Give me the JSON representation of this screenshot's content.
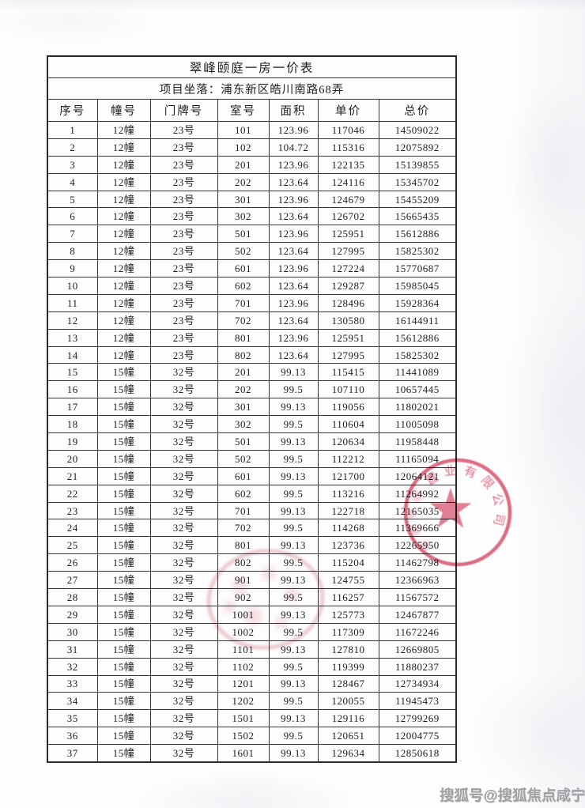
{
  "document": {
    "title": "翠峰颐庭一房一价表",
    "location": "项目坐落：浦东新区皓川南路68弄"
  },
  "table": {
    "columns": [
      "序号",
      "幢号",
      "门牌号",
      "室号",
      "面积",
      "单价",
      "总价"
    ],
    "rows": [
      [
        "1",
        "12幢",
        "23号",
        "101",
        "123.96",
        "117046",
        "14509022"
      ],
      [
        "2",
        "12幢",
        "23号",
        "102",
        "104.72",
        "115316",
        "12075892"
      ],
      [
        "3",
        "12幢",
        "23号",
        "201",
        "123.96",
        "122135",
        "15139855"
      ],
      [
        "4",
        "12幢",
        "23号",
        "202",
        "123.64",
        "124116",
        "15345702"
      ],
      [
        "5",
        "12幢",
        "23号",
        "301",
        "123.96",
        "124679",
        "15455209"
      ],
      [
        "6",
        "12幢",
        "23号",
        "302",
        "123.64",
        "126702",
        "15665435"
      ],
      [
        "7",
        "12幢",
        "23号",
        "501",
        "123.96",
        "125951",
        "15612886"
      ],
      [
        "8",
        "12幢",
        "23号",
        "502",
        "123.64",
        "127995",
        "15825302"
      ],
      [
        "9",
        "12幢",
        "23号",
        "601",
        "123.96",
        "127224",
        "15770687"
      ],
      [
        "10",
        "12幢",
        "23号",
        "602",
        "123.64",
        "129287",
        "15985045"
      ],
      [
        "11",
        "12幢",
        "23号",
        "701",
        "123.96",
        "128496",
        "15928364"
      ],
      [
        "12",
        "12幢",
        "23号",
        "702",
        "123.64",
        "130580",
        "16144911"
      ],
      [
        "13",
        "12幢",
        "23号",
        "801",
        "123.96",
        "125951",
        "15612886"
      ],
      [
        "14",
        "12幢",
        "23号",
        "802",
        "123.64",
        "127995",
        "15825302"
      ],
      [
        "15",
        "15幢",
        "32号",
        "201",
        "99.13",
        "115415",
        "11441089"
      ],
      [
        "16",
        "15幢",
        "32号",
        "202",
        "99.5",
        "107110",
        "10657445"
      ],
      [
        "17",
        "15幢",
        "32号",
        "301",
        "99.13",
        "119056",
        "11802021"
      ],
      [
        "18",
        "15幢",
        "32号",
        "302",
        "99.5",
        "110604",
        "11005098"
      ],
      [
        "19",
        "15幢",
        "32号",
        "501",
        "99.13",
        "120634",
        "11958448"
      ],
      [
        "20",
        "15幢",
        "32号",
        "502",
        "99.5",
        "112212",
        "11165094"
      ],
      [
        "21",
        "15幢",
        "32号",
        "601",
        "99.13",
        "121700",
        "12064121"
      ],
      [
        "22",
        "15幢",
        "32号",
        "602",
        "99.5",
        "113216",
        "11264992"
      ],
      [
        "23",
        "15幢",
        "32号",
        "701",
        "99.13",
        "122718",
        "12165035"
      ],
      [
        "24",
        "15幢",
        "32号",
        "702",
        "99.5",
        "114268",
        "11369666"
      ],
      [
        "25",
        "15幢",
        "32号",
        "801",
        "99.13",
        "123736",
        "12265950"
      ],
      [
        "26",
        "15幢",
        "32号",
        "802",
        "99.5",
        "115204",
        "11462798"
      ],
      [
        "27",
        "15幢",
        "32号",
        "901",
        "99.13",
        "124755",
        "12366963"
      ],
      [
        "28",
        "15幢",
        "32号",
        "902",
        "99.5",
        "116257",
        "11567572"
      ],
      [
        "29",
        "15幢",
        "32号",
        "1001",
        "99.13",
        "125773",
        "12467877"
      ],
      [
        "30",
        "15幢",
        "32号",
        "1002",
        "99.5",
        "117309",
        "11672246"
      ],
      [
        "31",
        "15幢",
        "32号",
        "1101",
        "99.13",
        "127810",
        "12669805"
      ],
      [
        "32",
        "15幢",
        "32号",
        "1102",
        "99.5",
        "119399",
        "11880237"
      ],
      [
        "33",
        "15幢",
        "32号",
        "1201",
        "99.13",
        "128467",
        "12734934"
      ],
      [
        "34",
        "15幢",
        "32号",
        "1202",
        "99.5",
        "120055",
        "11945473"
      ],
      [
        "35",
        "15幢",
        "32号",
        "1501",
        "99.13",
        "129116",
        "12799269"
      ],
      [
        "36",
        "15幢",
        "32号",
        "1502",
        "99.5",
        "120651",
        "12004775"
      ],
      [
        "37",
        "15幢",
        "32号",
        "1601",
        "99.13",
        "129634",
        "12850618"
      ]
    ]
  },
  "seal": {
    "arc_text": "置业有限公司",
    "color": "#d6506a"
  },
  "watermark": {
    "text": "搜狐号@搜狐焦点咸宁站"
  }
}
